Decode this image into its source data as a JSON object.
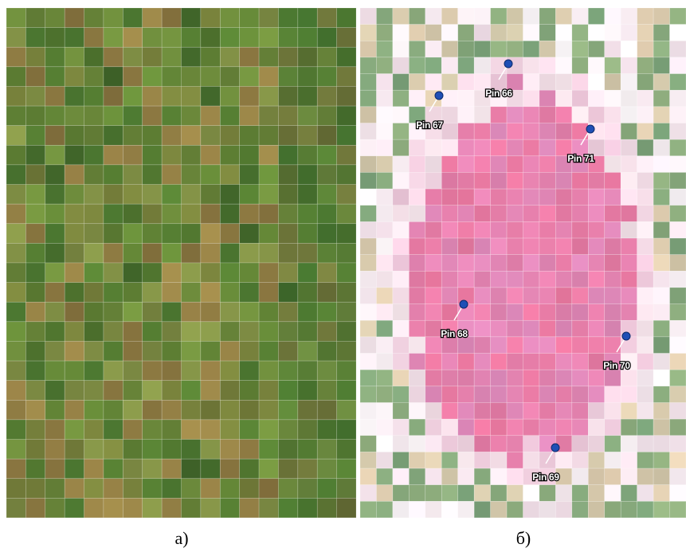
{
  "panels": [
    {
      "label": "а)"
    },
    {
      "label": "б)",
      "pins": [
        "Pin 66",
        "Pin 67",
        "Pin 71",
        "Pin 68",
        "Pin 70",
        "Pin 69"
      ]
    }
  ]
}
